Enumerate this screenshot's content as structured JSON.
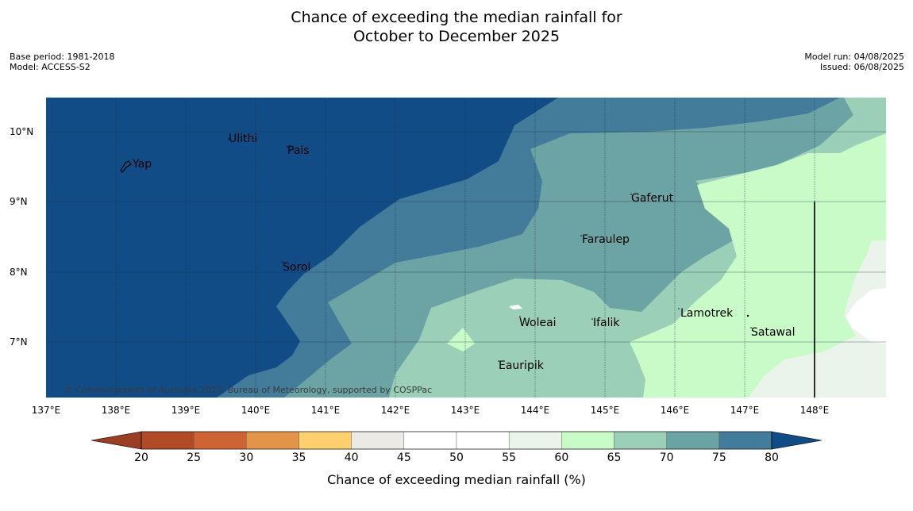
{
  "title": {
    "line1": "Chance of exceeding the median rainfall for",
    "line2": "October to December 2025"
  },
  "meta": {
    "base_period": "Base period: 1981-2018",
    "model": "Model: ACCESS-S2",
    "model_run": "Model run: 04/08/2025",
    "issued": "Issued: 06/08/2025"
  },
  "axes": {
    "lat_labels": [
      "10°N",
      "9°N",
      "8°N",
      "7°N"
    ],
    "lon_labels": [
      "137°E",
      "138°E",
      "139°E",
      "140°E",
      "141°E",
      "142°E",
      "143°E",
      "144°E",
      "145°E",
      "146°E",
      "147°E",
      "148°E"
    ]
  },
  "places": {
    "ulithi": "Ulithi",
    "pais": "Pais",
    "yap": "Yap",
    "gaferut": "Gaferut",
    "faraulep": "Faraulep",
    "sorol": "Sorol",
    "lamotrek": "Lamotrek",
    "woleai": "Woleai",
    "ifalik": "Ifalik",
    "satawal": "Satawal",
    "eauripik": "Eauripik"
  },
  "copyright": "© Commonwealth of Australia 2025, Bureau of Meteorology, supported by COSPPac",
  "colorbar": {
    "ticks": [
      "20",
      "25",
      "30",
      "35",
      "40",
      "45",
      "50",
      "55",
      "60",
      "65",
      "70",
      "75",
      "80"
    ],
    "title": "Chance of exceeding median rainfall (%)",
    "colors": [
      "#b04a27",
      "#ce6434",
      "#e29448",
      "#fdcf6d",
      "#eceae6",
      "#ffffff",
      "#ffffff",
      "#eaf4ea",
      "#c8fbc8",
      "#9ccfb8",
      "#6ca3a4",
      "#427c9a"
    ],
    "low_extend_color": "#9a3e24",
    "high_extend_color": "#124c87"
  }
}
